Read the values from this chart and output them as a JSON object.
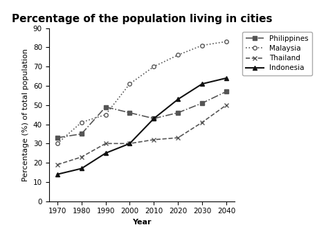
{
  "title": "Percentage of the population living in cities",
  "xlabel": "Year",
  "ylabel": "Percentage (%) of total population",
  "years": [
    1970,
    1980,
    1990,
    2000,
    2010,
    2020,
    2030,
    2040
  ],
  "series": {
    "Philippines": {
      "values": [
        33,
        35,
        49,
        46,
        43,
        46,
        51,
        57
      ],
      "color": "#555555",
      "linestyle": "-.",
      "marker": "s",
      "markersize": 4,
      "linewidth": 1.2
    },
    "Malaysia": {
      "values": [
        30,
        41,
        45,
        61,
        70,
        76,
        81,
        83
      ],
      "color": "#555555",
      "linestyle": ":",
      "marker": "o",
      "markerfacecolor": "white",
      "markersize": 4,
      "linewidth": 1.2
    },
    "Thailand": {
      "values": [
        19,
        23,
        30,
        30,
        32,
        33,
        41,
        50
      ],
      "color": "#555555",
      "linestyle": "--",
      "marker": "x",
      "markersize": 5,
      "linewidth": 1.2
    },
    "Indonesia": {
      "values": [
        14,
        17,
        25,
        30,
        43,
        53,
        61,
        64
      ],
      "color": "#111111",
      "linestyle": "-",
      "marker": "^",
      "markersize": 4,
      "linewidth": 1.5
    }
  },
  "ylim": [
    0,
    90
  ],
  "yticks": [
    0,
    10,
    20,
    30,
    40,
    50,
    60,
    70,
    80,
    90
  ],
  "background_color": "#ffffff",
  "title_fontsize": 11,
  "axis_label_fontsize": 8,
  "tick_fontsize": 7.5,
  "legend_fontsize": 7.5
}
